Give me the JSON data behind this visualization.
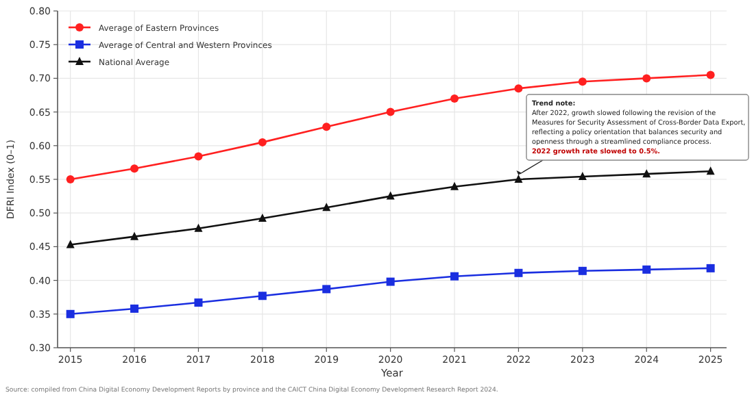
{
  "chart_data": {
    "type": "line",
    "xlabel": "Year",
    "ylabel": "DFRI Index (0–1)",
    "x": [
      2015,
      2016,
      2017,
      2018,
      2019,
      2020,
      2021,
      2022,
      2023,
      2024,
      2025
    ],
    "series": [
      {
        "name": "Average of Eastern Provinces",
        "color": "#ff2020",
        "marker": "circle",
        "values": [
          0.55,
          0.566,
          0.584,
          0.605,
          0.628,
          0.65,
          0.67,
          0.685,
          0.695,
          0.7,
          0.705
        ]
      },
      {
        "name": "Average of Central and Western Provinces",
        "color": "#1a2ee0",
        "marker": "square",
        "values": [
          0.35,
          0.358,
          0.367,
          0.377,
          0.387,
          0.398,
          0.406,
          0.411,
          0.414,
          0.416,
          0.418
        ]
      },
      {
        "name": "National Average",
        "color": "#111111",
        "marker": "triangle",
        "values": [
          0.453,
          0.465,
          0.477,
          0.492,
          0.508,
          0.525,
          0.539,
          0.55,
          0.554,
          0.558,
          0.562
        ]
      }
    ],
    "xlim": [
      2014.8,
      2025.25
    ],
    "xticks": [
      2015,
      2016,
      2017,
      2018,
      2019,
      2020,
      2021,
      2022,
      2023,
      2024,
      2025
    ],
    "ylim": [
      0.3,
      0.8
    ],
    "yticks": [
      {
        "value": 0.3,
        "label": "0.30"
      },
      {
        "value": 0.35,
        "label": "0.35"
      },
      {
        "value": 0.4,
        "label": "0.40"
      },
      {
        "value": 0.45,
        "label": "0.45"
      },
      {
        "value": 0.5,
        "label": "0.50"
      },
      {
        "value": 0.55,
        "label": "0.55"
      },
      {
        "value": 0.6,
        "label": "0.60"
      },
      {
        "value": 0.65,
        "label": "0.65"
      },
      {
        "value": 0.7,
        "label": "0.70"
      },
      {
        "value": 0.75,
        "label": "0.75"
      },
      {
        "value": 0.8,
        "label": "0.80"
      }
    ],
    "grid": true,
    "legend": "top left",
    "line_style": "solid",
    "annotations": [
      {
        "text": "Trend note:\nAfter 2022, growth slowed following the revision of the\nMeasures for Security Assessment of Cross-Border Data Export,\nreflecting a policy orientation that balances security and\nopenness through a streamlined compliance process.\n2022 growth rate slowed to 0.5%.",
        "x": 2022,
        "y": 0.55
      },
      "Source: compiled from China Digital Economy Development Reports by province and the CAICT China Digital Economy Development Research Report 2024."
    ]
  }
}
